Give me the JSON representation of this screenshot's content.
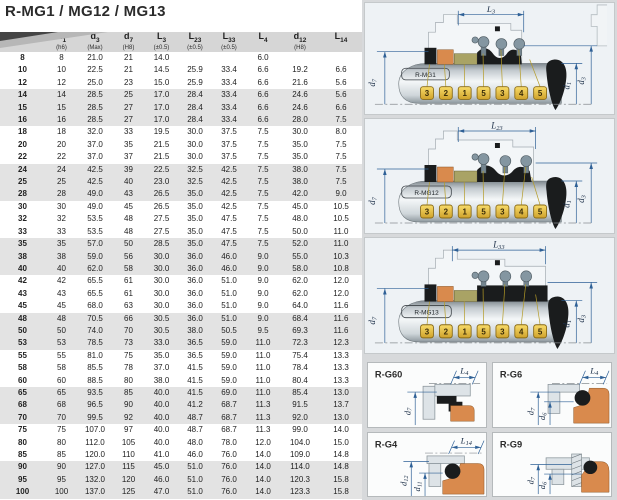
{
  "title": "R-MG1 / MG12 / MG13",
  "colors": {
    "dimension_blue": "#2e6096",
    "tag_yellow": "#e8c23a",
    "elastomer_orange": "#d98a4d",
    "seat_olive": "#a9a365",
    "stripe_gray": "#e3e3e3",
    "header_gray": "#d6d6d6"
  },
  "table": {
    "columns": [
      {
        "main": "",
        "sub": "",
        "note": ""
      },
      {
        "main": "d",
        "sub": "1",
        "note": "(h6)"
      },
      {
        "main": "d",
        "sub": "3",
        "note": "(Max)"
      },
      {
        "main": "d",
        "sub": "7",
        "note": "(H8)"
      },
      {
        "main": "L",
        "sub": "3",
        "note": "(±0.5)"
      },
      {
        "main": "L",
        "sub": "23",
        "note": "(±0.5)"
      },
      {
        "main": "L",
        "sub": "33",
        "note": "(±0.5)"
      },
      {
        "main": "L",
        "sub": "4",
        "note": ""
      },
      {
        "main": "d",
        "sub": "12",
        "note": "(H8)"
      },
      {
        "main": "L",
        "sub": "14",
        "note": ""
      }
    ],
    "rows": [
      [
        "8",
        "8",
        "21.0",
        "21",
        "14.0",
        "",
        "",
        "6.0",
        "",
        ""
      ],
      [
        "10",
        "10",
        "22.5",
        "21",
        "14.5",
        "25.9",
        "33.4",
        "6.6",
        "19.2",
        "6.6"
      ],
      [
        "12",
        "12",
        "25.0",
        "23",
        "15.0",
        "25.9",
        "33.4",
        "6.6",
        "21.6",
        "5.6"
      ],
      [
        "14",
        "14",
        "28.5",
        "25",
        "17.0",
        "28.4",
        "33.4",
        "6.6",
        "24.6",
        "5.6"
      ],
      [
        "15",
        "15",
        "28.5",
        "27",
        "17.0",
        "28.4",
        "33.4",
        "6.6",
        "24.6",
        "6.6"
      ],
      [
        "16",
        "16",
        "28.5",
        "27",
        "17.0",
        "28.4",
        "33.4",
        "6.6",
        "28.0",
        "7.5"
      ],
      [
        "18",
        "18",
        "32.0",
        "33",
        "19.5",
        "30.0",
        "37.5",
        "7.5",
        "30.0",
        "8.0"
      ],
      [
        "20",
        "20",
        "37.0",
        "35",
        "21.5",
        "30.0",
        "37.5",
        "7.5",
        "35.0",
        "7.5"
      ],
      [
        "22",
        "22",
        "37.0",
        "37",
        "21.5",
        "30.0",
        "37.5",
        "7.5",
        "35.0",
        "7.5"
      ],
      [
        "24",
        "24",
        "42.5",
        "39",
        "22.5",
        "32.5",
        "42.5",
        "7.5",
        "38.0",
        "7.5"
      ],
      [
        "25",
        "25",
        "42.5",
        "40",
        "23.0",
        "32.5",
        "42.5",
        "7.5",
        "38.0",
        "7.5"
      ],
      [
        "28",
        "28",
        "49.0",
        "43",
        "26.5",
        "35.0",
        "42.5",
        "7.5",
        "42.0",
        "9.0"
      ],
      [
        "30",
        "30",
        "49.0",
        "45",
        "26.5",
        "35.0",
        "42.5",
        "7.5",
        "45.0",
        "10.5"
      ],
      [
        "32",
        "32",
        "53.5",
        "48",
        "27.5",
        "35.0",
        "47.5",
        "7.5",
        "48.0",
        "10.5"
      ],
      [
        "33",
        "33",
        "53.5",
        "48",
        "27.5",
        "35.0",
        "47.5",
        "7.5",
        "50.0",
        "11.0"
      ],
      [
        "35",
        "35",
        "57.0",
        "50",
        "28.5",
        "35.0",
        "47.5",
        "7.5",
        "52.0",
        "11.0"
      ],
      [
        "38",
        "38",
        "59.0",
        "56",
        "30.0",
        "36.0",
        "46.0",
        "9.0",
        "55.0",
        "10.3"
      ],
      [
        "40",
        "40",
        "62.0",
        "58",
        "30.0",
        "36.0",
        "46.0",
        "9.0",
        "58.0",
        "10.8"
      ],
      [
        "42",
        "42",
        "65.5",
        "61",
        "30.0",
        "36.0",
        "51.0",
        "9.0",
        "62.0",
        "12.0"
      ],
      [
        "43",
        "43",
        "65.5",
        "61",
        "30.0",
        "36.0",
        "51.0",
        "9.0",
        "62.0",
        "12.0"
      ],
      [
        "45",
        "45",
        "68.0",
        "63",
        "30.0",
        "36.0",
        "51.0",
        "9.0",
        "64.0",
        "11.6"
      ],
      [
        "48",
        "48",
        "70.5",
        "66",
        "30.5",
        "36.0",
        "51.0",
        "9.0",
        "68.4",
        "11.6"
      ],
      [
        "50",
        "50",
        "74.0",
        "70",
        "30.5",
        "38.0",
        "50.5",
        "9.5",
        "69.3",
        "11.6"
      ],
      [
        "53",
        "53",
        "78.5",
        "73",
        "33.0",
        "36.5",
        "59.0",
        "11.0",
        "72.3",
        "12.3"
      ],
      [
        "55",
        "55",
        "81.0",
        "75",
        "35.0",
        "36.5",
        "59.0",
        "11.0",
        "75.4",
        "13.3"
      ],
      [
        "58",
        "58",
        "85.5",
        "78",
        "37.0",
        "41.5",
        "59.0",
        "11.0",
        "78.4",
        "13.3"
      ],
      [
        "60",
        "60",
        "88.5",
        "80",
        "38.0",
        "41.5",
        "59.0",
        "11.0",
        "80.4",
        "13.3"
      ],
      [
        "65",
        "65",
        "93.5",
        "85",
        "40.0",
        "41.5",
        "69.0",
        "11.0",
        "85.4",
        "13.0"
      ],
      [
        "68",
        "68",
        "96.5",
        "90",
        "40.0",
        "41.2",
        "68.7",
        "11.3",
        "91.5",
        "13.7"
      ],
      [
        "70",
        "70",
        "99.5",
        "92",
        "40.0",
        "48.7",
        "68.7",
        "11.3",
        "92.0",
        "13.0"
      ],
      [
        "75",
        "75",
        "107.0",
        "97",
        "40.0",
        "48.7",
        "68.7",
        "11.3",
        "99.0",
        "14.0"
      ],
      [
        "80",
        "80",
        "112.0",
        "105",
        "40.0",
        "48.0",
        "78.0",
        "12.0",
        "104.0",
        "15.0"
      ],
      [
        "85",
        "85",
        "120.0",
        "110",
        "41.0",
        "46.0",
        "76.0",
        "14.0",
        "109.0",
        "14.8"
      ],
      [
        "90",
        "90",
        "127.0",
        "115",
        "45.0",
        "51.0",
        "76.0",
        "14.0",
        "114.0",
        "14.8"
      ],
      [
        "95",
        "95",
        "132.0",
        "120",
        "46.0",
        "51.0",
        "76.0",
        "14.0",
        "120.3",
        "15.8"
      ],
      [
        "100",
        "100",
        "137.0",
        "125",
        "47.0",
        "51.0",
        "76.0",
        "14.0",
        "123.3",
        "15.8"
      ]
    ]
  },
  "part_tags": [
    "3",
    "2",
    "1",
    "5",
    "3",
    "4",
    "5"
  ],
  "seal_diagrams": [
    {
      "name": "R-MG1",
      "dim": {
        "main": "L",
        "sub": "3"
      }
    },
    {
      "name": "R-MG12",
      "dim": {
        "main": "L",
        "sub": "23"
      }
    },
    {
      "name": "R-MG13",
      "dim": {
        "main": "L",
        "sub": "33"
      }
    }
  ],
  "axis_labels": {
    "d7": {
      "main": "d",
      "sub": "7"
    },
    "d1": {
      "main": "d",
      "sub": "1"
    },
    "d3": {
      "main": "d",
      "sub": "3"
    }
  },
  "detail_cards": [
    {
      "name": "R-G60",
      "top_dim": {
        "main": "L",
        "sub": "4"
      },
      "dims": [
        {
          "main": "d",
          "sub": "7"
        }
      ]
    },
    {
      "name": "R-G6",
      "top_dim": {
        "main": "L",
        "sub": "4"
      },
      "dims": [
        {
          "main": "d",
          "sub": "7"
        },
        {
          "main": "d",
          "sub": "6"
        }
      ]
    },
    {
      "name": "R-G4",
      "top_dim": {
        "main": "L",
        "sub": "14"
      },
      "dims": [
        {
          "main": "d",
          "sub": "12"
        },
        {
          "main": "d",
          "sub": "11"
        }
      ]
    },
    {
      "name": "R-G9",
      "dims": [
        {
          "main": "d",
          "sub": "7"
        },
        {
          "main": "d",
          "sub": "6"
        }
      ]
    }
  ]
}
